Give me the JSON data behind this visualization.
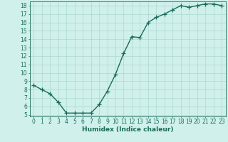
{
  "x": [
    0,
    1,
    2,
    3,
    4,
    5,
    6,
    7,
    8,
    9,
    10,
    11,
    12,
    13,
    14,
    15,
    16,
    17,
    18,
    19,
    20,
    21,
    22,
    23
  ],
  "y": [
    8.5,
    8.0,
    7.5,
    6.5,
    5.2,
    5.2,
    5.2,
    5.2,
    6.2,
    7.8,
    9.8,
    12.3,
    14.3,
    14.2,
    16.0,
    16.6,
    17.0,
    17.5,
    18.0,
    17.8,
    18.0,
    18.2,
    18.2,
    18.0
  ],
  "color": "#1a6b5a",
  "bg_color": "#cff0eb",
  "grid_color": "#aad8d0",
  "xlabel": "Humidex (Indice chaleur)",
  "ylim": [
    4.8,
    18.5
  ],
  "xlim": [
    -0.5,
    23.5
  ],
  "yticks": [
    5,
    6,
    7,
    8,
    9,
    10,
    11,
    12,
    13,
    14,
    15,
    16,
    17,
    18
  ],
  "xticks": [
    0,
    1,
    2,
    3,
    4,
    5,
    6,
    7,
    8,
    9,
    10,
    11,
    12,
    13,
    14,
    15,
    16,
    17,
    18,
    19,
    20,
    21,
    22,
    23
  ],
  "marker": "+",
  "markersize": 4,
  "linewidth": 1.0,
  "axis_fontsize": 6.5,
  "tick_fontsize": 5.5
}
